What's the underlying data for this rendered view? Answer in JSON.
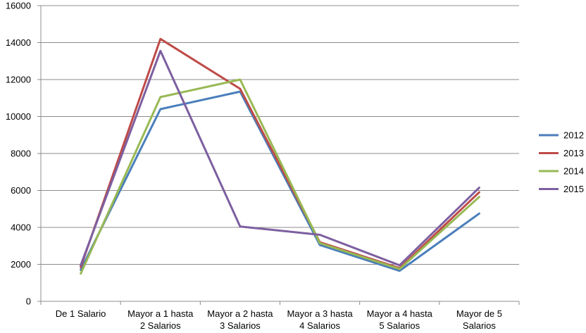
{
  "chart_data": {
    "type": "line",
    "title": "",
    "xlabel": "",
    "ylabel": "",
    "ylim": [
      0,
      16000
    ],
    "y_ticks": [
      0,
      2000,
      4000,
      6000,
      8000,
      10000,
      12000,
      14000,
      16000
    ],
    "grid": "horizontal",
    "legend_position": "right",
    "categories": [
      [
        "De 1 Salario"
      ],
      [
        "Mayor a 1 hasta",
        "2 Salarios"
      ],
      [
        "Mayor a 2 hasta",
        "3 Salarios"
      ],
      [
        "Mayor a 3 hasta",
        "4 Salarios"
      ],
      [
        "Mayor a 4 hasta",
        "5 Salarios"
      ],
      [
        "Mayor de 5",
        "Salarios"
      ]
    ],
    "series": [
      {
        "name": "2012",
        "color": "#4a7ebb",
        "values": [
          1700,
          10400,
          11350,
          3050,
          1650,
          4750
        ]
      },
      {
        "name": "2013",
        "color": "#be4b48",
        "values": [
          1850,
          14200,
          11500,
          3200,
          1800,
          5900
        ]
      },
      {
        "name": "2014",
        "color": "#98b954",
        "values": [
          1500,
          11050,
          12000,
          3150,
          1750,
          5650
        ]
      },
      {
        "name": "2015",
        "color": "#7d5fa0",
        "values": [
          1950,
          13550,
          4050,
          3600,
          1950,
          6150
        ]
      }
    ]
  }
}
